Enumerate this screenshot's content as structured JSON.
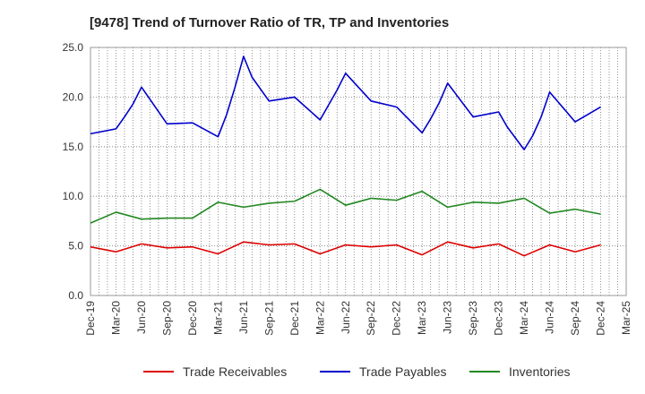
{
  "chart_data": {
    "type": "line",
    "title": "[9478]  Trend of Turnover Ratio of TR, TP and Inventories",
    "xlabel": "",
    "ylabel": "",
    "ylim": [
      0,
      25
    ],
    "yticks": [
      "0.0",
      "5.0",
      "10.0",
      "15.0",
      "20.0",
      "25.0"
    ],
    "x_tick_labels": [
      "Dec-19",
      "Mar-20",
      "Jun-20",
      "Sep-20",
      "Dec-20",
      "Mar-21",
      "Jun-21",
      "Sep-21",
      "Dec-21",
      "Mar-22",
      "Jun-22",
      "Sep-22",
      "Dec-22",
      "Mar-23",
      "Jun-23",
      "Sep-23",
      "Dec-23",
      "Mar-24",
      "Jun-24",
      "Sep-24",
      "Dec-24",
      "Mar-25"
    ],
    "x": [
      "Dec-19",
      "Jan-20",
      "Feb-20",
      "Mar-20",
      "Apr-20",
      "May-20",
      "Jun-20",
      "Jul-20",
      "Aug-20",
      "Sep-20",
      "Oct-20",
      "Nov-20",
      "Dec-20",
      "Jan-21",
      "Feb-21",
      "Mar-21",
      "Apr-21",
      "May-21",
      "Jun-21",
      "Jul-21",
      "Aug-21",
      "Sep-21",
      "Oct-21",
      "Nov-21",
      "Dec-21",
      "Jan-22",
      "Feb-22",
      "Mar-22",
      "Apr-22",
      "May-22",
      "Jun-22",
      "Jul-22",
      "Aug-22",
      "Sep-22",
      "Oct-22",
      "Nov-22",
      "Dec-22",
      "Jan-23",
      "Feb-23",
      "Mar-23",
      "Apr-23",
      "May-23",
      "Jun-23",
      "Jul-23",
      "Aug-23",
      "Sep-23",
      "Oct-23",
      "Nov-23",
      "Dec-23",
      "Jan-24",
      "Feb-24",
      "Mar-24",
      "Apr-24",
      "May-24",
      "Jun-24",
      "Jul-24",
      "Aug-24",
      "Sep-24",
      "Oct-24",
      "Nov-24",
      "Dec-24",
      "Jan-25",
      "Feb-25",
      "Mar-25"
    ],
    "grid": true,
    "legend_position": "bottom",
    "series": [
      {
        "name": "Trade Receivables",
        "color": "#dd0000",
        "points": [
          [
            "Dec-19",
            4.9
          ],
          [
            "Mar-20",
            4.4
          ],
          [
            "Jun-20",
            5.2
          ],
          [
            "Sep-20",
            4.8
          ],
          [
            "Dec-20",
            4.9
          ],
          [
            "Mar-21",
            4.2
          ],
          [
            "Jun-21",
            5.4
          ],
          [
            "Sep-21",
            5.1
          ],
          [
            "Dec-21",
            5.2
          ],
          [
            "Mar-22",
            4.2
          ],
          [
            "Jun-22",
            5.1
          ],
          [
            "Sep-22",
            4.9
          ],
          [
            "Dec-22",
            5.1
          ],
          [
            "Mar-23",
            4.1
          ],
          [
            "Jun-23",
            5.4
          ],
          [
            "Sep-23",
            4.8
          ],
          [
            "Dec-23",
            5.2
          ],
          [
            "Mar-24",
            4.0
          ],
          [
            "Jun-24",
            5.1
          ],
          [
            "Sep-24",
            4.4
          ],
          [
            "Dec-24",
            5.1
          ]
        ]
      },
      {
        "name": "Trade Payables",
        "color": "#0000cc",
        "points": [
          [
            "Dec-19",
            16.3
          ],
          [
            "Mar-20",
            16.8
          ],
          [
            "Apr-20",
            18.0
          ],
          [
            "May-20",
            19.3
          ],
          [
            "Jun-20",
            21.0
          ],
          [
            "Sep-20",
            17.3
          ],
          [
            "Dec-20",
            17.4
          ],
          [
            "Mar-21",
            16.0
          ],
          [
            "Apr-21",
            18.2
          ],
          [
            "May-21",
            21.0
          ],
          [
            "Jun-21",
            24.1
          ],
          [
            "Jul-21",
            22.0
          ],
          [
            "Sep-21",
            19.6
          ],
          [
            "Dec-21",
            20.0
          ],
          [
            "Mar-22",
            17.7
          ],
          [
            "Apr-22",
            19.2
          ],
          [
            "May-22",
            20.7
          ],
          [
            "Jun-22",
            22.4
          ],
          [
            "Sep-22",
            19.6
          ],
          [
            "Dec-22",
            19.0
          ],
          [
            "Mar-23",
            16.4
          ],
          [
            "Apr-23",
            17.8
          ],
          [
            "May-23",
            19.4
          ],
          [
            "Jun-23",
            21.4
          ],
          [
            "Sep-23",
            18.0
          ],
          [
            "Dec-23",
            18.5
          ],
          [
            "Jan-24",
            17.0
          ],
          [
            "Mar-24",
            14.7
          ],
          [
            "Apr-24",
            16.1
          ],
          [
            "May-24",
            18.0
          ],
          [
            "Jun-24",
            20.5
          ],
          [
            "Sep-24",
            17.5
          ],
          [
            "Dec-24",
            19.0
          ]
        ]
      },
      {
        "name": "Inventories",
        "color": "#228822",
        "points": [
          [
            "Dec-19",
            7.3
          ],
          [
            "Mar-20",
            8.4
          ],
          [
            "Jun-20",
            7.7
          ],
          [
            "Sep-20",
            7.8
          ],
          [
            "Dec-20",
            7.8
          ],
          [
            "Mar-21",
            9.4
          ],
          [
            "Jun-21",
            8.9
          ],
          [
            "Sep-21",
            9.3
          ],
          [
            "Dec-21",
            9.5
          ],
          [
            "Mar-22",
            10.7
          ],
          [
            "Jun-22",
            9.1
          ],
          [
            "Sep-22",
            9.8
          ],
          [
            "Dec-22",
            9.6
          ],
          [
            "Mar-23",
            10.5
          ],
          [
            "Jun-23",
            8.9
          ],
          [
            "Sep-23",
            9.4
          ],
          [
            "Dec-23",
            9.3
          ],
          [
            "Mar-24",
            9.8
          ],
          [
            "Jun-24",
            8.3
          ],
          [
            "Sep-24",
            8.7
          ],
          [
            "Dec-24",
            8.2
          ]
        ]
      }
    ]
  }
}
